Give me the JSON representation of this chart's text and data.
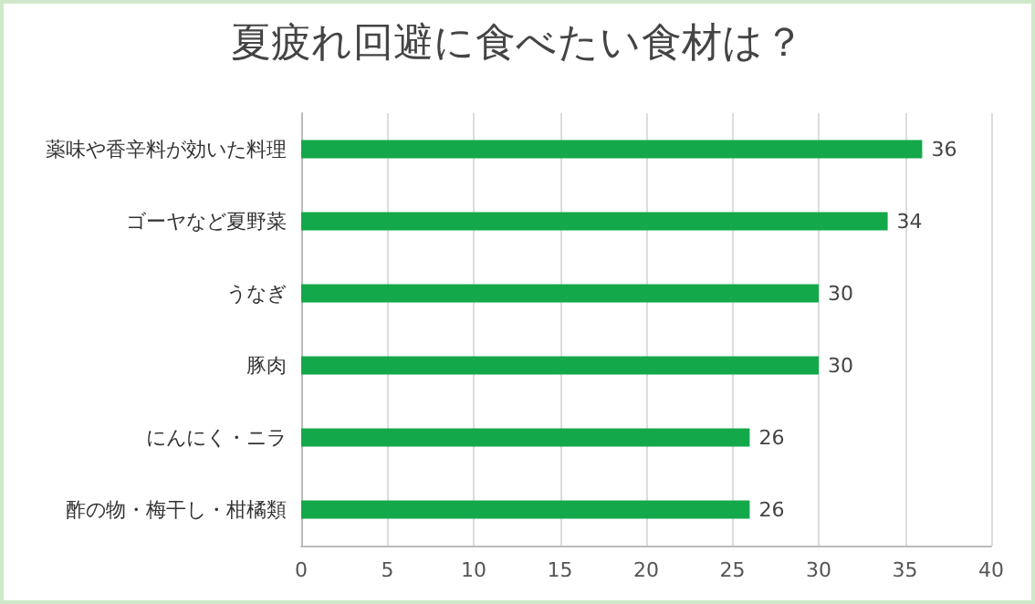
{
  "chart_data": {
    "type": "bar",
    "title": "夏疲れ回避に食べたい食材は？",
    "orientation": "horizontal",
    "categories": [
      "薬味や香辛料が効いた料理",
      "ゴーヤなど夏野菜",
      "うなぎ",
      "豚肉",
      "にんにく・ニラ",
      "酢の物・梅干し・柑橘類"
    ],
    "values": [
      36,
      34,
      30,
      30,
      26,
      26
    ],
    "color": "#13a84a",
    "xlim": [
      0,
      40
    ],
    "xticks": [
      0,
      5,
      10,
      15,
      20,
      25,
      30,
      35,
      40
    ],
    "grid": "x",
    "data_labels": true
  }
}
